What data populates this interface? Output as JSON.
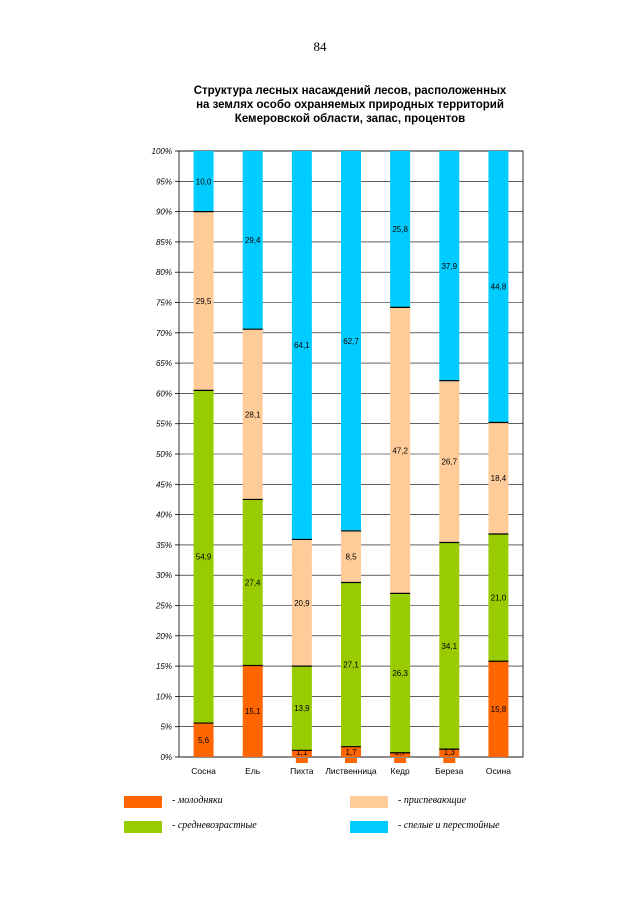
{
  "page_number": "84",
  "chart_data": {
    "type": "bar",
    "stacked": true,
    "percent": true,
    "title_lines": [
      "Структура лесных насаждений лесов, расположенных",
      "на землях особо охраняемых природных территорий",
      "Кемеровской области, запас, процентов"
    ],
    "categories": [
      "Сосна",
      "Ель",
      "Пихта",
      "Лиственница",
      "Кедр",
      "Береза",
      "Осина"
    ],
    "y_ticks": [
      "0%",
      "5%",
      "10%",
      "15%",
      "20%",
      "25%",
      "30%",
      "35%",
      "40%",
      "45%",
      "50%",
      "55%",
      "60%",
      "65%",
      "70%",
      "75%",
      "80%",
      "85%",
      "90%",
      "95%",
      "100%"
    ],
    "ylim": [
      0,
      100
    ],
    "grid": true,
    "series": [
      {
        "name": "- молодняки",
        "color": "#ff6600",
        "values": [
          5.6,
          15.1,
          1.1,
          1.7,
          0.7,
          1.3,
          15.8
        ],
        "labels": [
          "5,6",
          "15,1",
          "1,1",
          "1,7",
          "0,7",
          "1,3",
          "15,8"
        ]
      },
      {
        "name": "- средневозрастные",
        "color": "#99cc00",
        "values": [
          54.9,
          27.4,
          13.9,
          27.1,
          26.3,
          34.1,
          21.0
        ],
        "labels": [
          "54,9",
          "27,4",
          "13,9",
          "27,1",
          "26,3",
          "34,1",
          "21,0"
        ]
      },
      {
        "name": "- приспевающие",
        "color": "#ffcc99",
        "values": [
          29.5,
          28.1,
          20.9,
          8.5,
          47.2,
          26.7,
          18.4
        ],
        "labels": [
          "29,5",
          "28,1",
          "20,9",
          "8,5",
          "47,2",
          "26,7",
          "18,4"
        ]
      },
      {
        "name": "- спелые и перестойные",
        "color": "#00ccff",
        "values": [
          10.0,
          29.4,
          64.1,
          62.7,
          25.8,
          37.9,
          44.8
        ],
        "labels": [
          "10,0",
          "29,4",
          "64,1",
          "62,7",
          "25,8",
          "37,9",
          "44,8"
        ]
      }
    ]
  }
}
